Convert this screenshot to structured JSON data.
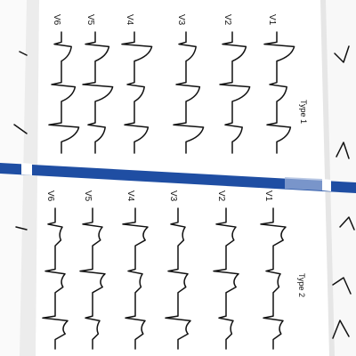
{
  "figure": {
    "colors": {
      "paper": "#ffffff",
      "shadow": "#d8d8d8",
      "ink": "#111111",
      "separator": "#1f4ea3"
    },
    "panels": [
      {
        "type_label": "Type 1",
        "leads": [
          "V6",
          "V5",
          "V4",
          "V3",
          "V2",
          "V1"
        ]
      },
      {
        "type_label": "Type 2",
        "leads": [
          "V6",
          "V5",
          "V4",
          "V3",
          "V2",
          "V1"
        ]
      }
    ]
  }
}
